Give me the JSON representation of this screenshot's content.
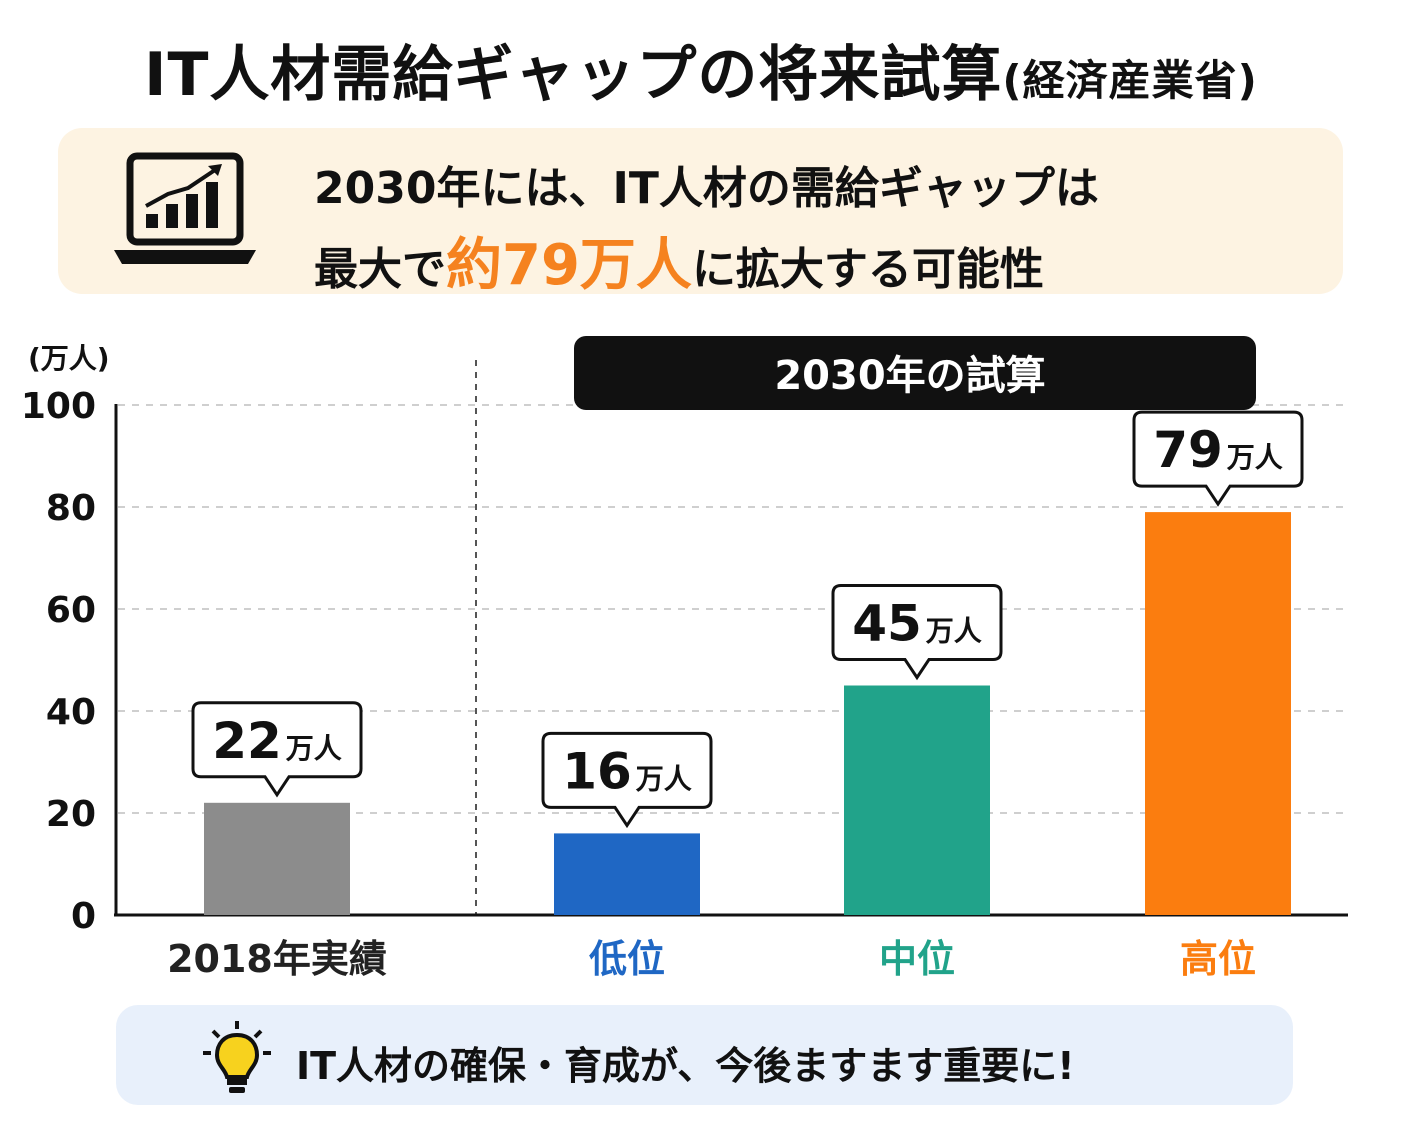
{
  "header": {
    "title": "IT人材需給ギャップの将来試算",
    "source": "(経済産業省)"
  },
  "summary": {
    "line1": "2030年には、IT人材の需給ギャップは",
    "line2_pre": "最大で",
    "line2_highlight": "約79万人",
    "line2_post": "に拡大する可能性",
    "icon": "laptop-growth-chart-icon"
  },
  "colors": {
    "accent": "#f5821f",
    "low": "#1f67c4",
    "mid": "#21a38a",
    "high": "#fb7d0f",
    "actual": "#8c8c8c"
  },
  "chart_data": {
    "type": "bar",
    "unit_label": "(万人)",
    "group_label": "2030年の試算",
    "categories": [
      "2018年実績",
      "低位",
      "中位",
      "高位"
    ],
    "values": [
      22,
      16,
      45,
      79
    ],
    "value_labels": [
      "22",
      "16",
      "45",
      "79"
    ],
    "value_unit": "万人",
    "colors": [
      "#8c8c8c",
      "#1f67c4",
      "#21a38a",
      "#fb7d0f"
    ],
    "label_colors": [
      "#222222",
      "#1f67c4",
      "#21a38a",
      "#fb7d0f"
    ],
    "yticks": [
      0,
      20,
      40,
      60,
      80,
      100
    ],
    "ylim": [
      0,
      100
    ],
    "grid": true
  },
  "footer": {
    "icon": "light-bulb-icon",
    "message": "IT人材の確保・育成が、今後ますます重要に!"
  }
}
